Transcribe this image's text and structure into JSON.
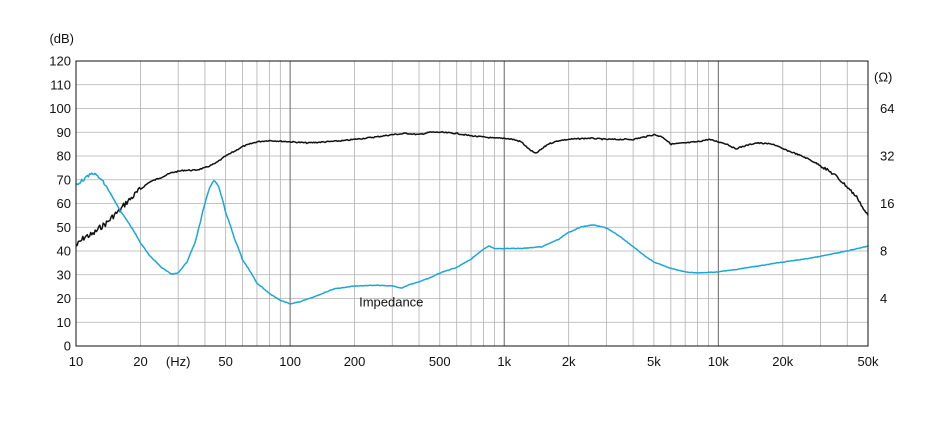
{
  "chart_data": {
    "type": "line",
    "x_scale": "log",
    "xlim": [
      10,
      50000
    ],
    "y_left": {
      "unit": "(dB)",
      "lim": [
        0,
        120
      ],
      "ticks": [
        "0",
        "10",
        "20",
        "30",
        "40",
        "50",
        "60",
        "70",
        "80",
        "90",
        "100",
        "110",
        "120"
      ]
    },
    "y_right": {
      "unit": "(Ω)",
      "scale": "log2",
      "lim": [
        2,
        128
      ],
      "ticks": [
        {
          "value": 4,
          "label": "4"
        },
        {
          "value": 8,
          "label": "8"
        },
        {
          "value": 16,
          "label": "16"
        },
        {
          "value": 32,
          "label": "32"
        },
        {
          "value": 64,
          "label": "64"
        }
      ]
    },
    "x_ticks": [
      {
        "value": 10,
        "label": "10"
      },
      {
        "value": 20,
        "label": "20"
      },
      {
        "value": 50,
        "label": "50"
      },
      {
        "value": 100,
        "label": "100"
      },
      {
        "value": 200,
        "label": "200"
      },
      {
        "value": 500,
        "label": "500"
      },
      {
        "value": 1000,
        "label": "1k"
      },
      {
        "value": 2000,
        "label": "2k"
      },
      {
        "value": 5000,
        "label": "5k"
      },
      {
        "value": 10000,
        "label": "10k"
      },
      {
        "value": 20000,
        "label": "20k"
      },
      {
        "value": 50000,
        "label": "50k"
      }
    ],
    "x_unit_label": {
      "value": 30,
      "label": "(Hz)"
    },
    "grid": true,
    "annotations": [
      {
        "text": "Impedance",
        "x": 210,
        "y": 20
      }
    ],
    "series": [
      {
        "axis": "left",
        "color": "#111111",
        "points": [
          [
            10,
            42
          ],
          [
            11,
            46
          ],
          [
            12,
            47
          ],
          [
            13,
            50
          ],
          [
            14,
            52
          ],
          [
            15,
            55
          ],
          [
            16,
            57
          ],
          [
            17,
            60
          ],
          [
            18,
            62
          ],
          [
            20,
            66
          ],
          [
            22,
            69
          ],
          [
            25,
            71
          ],
          [
            28,
            73
          ],
          [
            32,
            74
          ],
          [
            36,
            74
          ],
          [
            40,
            75
          ],
          [
            45,
            77
          ],
          [
            50,
            80
          ],
          [
            55,
            82
          ],
          [
            60,
            84
          ],
          [
            70,
            86
          ],
          [
            80,
            86.5
          ],
          [
            100,
            86
          ],
          [
            120,
            85.5
          ],
          [
            150,
            86
          ],
          [
            180,
            86.5
          ],
          [
            200,
            87
          ],
          [
            250,
            88
          ],
          [
            300,
            89
          ],
          [
            350,
            89.5
          ],
          [
            400,
            89
          ],
          [
            450,
            90
          ],
          [
            500,
            90
          ],
          [
            600,
            89.5
          ],
          [
            700,
            88.5
          ],
          [
            800,
            88
          ],
          [
            900,
            87.5
          ],
          [
            1000,
            87.5
          ],
          [
            1100,
            87
          ],
          [
            1200,
            86
          ],
          [
            1300,
            83
          ],
          [
            1400,
            81
          ],
          [
            1500,
            83
          ],
          [
            1600,
            85
          ],
          [
            1800,
            86.5
          ],
          [
            2000,
            87
          ],
          [
            2500,
            87.5
          ],
          [
            3000,
            87
          ],
          [
            3500,
            87
          ],
          [
            4000,
            87
          ],
          [
            4500,
            88
          ],
          [
            5000,
            89
          ],
          [
            5500,
            88
          ],
          [
            6000,
            85
          ],
          [
            7000,
            85.5
          ],
          [
            8000,
            86
          ],
          [
            9000,
            87
          ],
          [
            10000,
            86
          ],
          [
            11000,
            85
          ],
          [
            12000,
            83
          ],
          [
            13000,
            84
          ],
          [
            15000,
            85.5
          ],
          [
            18000,
            85
          ],
          [
            20000,
            83
          ],
          [
            23000,
            81
          ],
          [
            26000,
            79
          ],
          [
            30000,
            76
          ],
          [
            35000,
            72
          ],
          [
            40000,
            67
          ],
          [
            45000,
            62
          ],
          [
            48000,
            57
          ],
          [
            50000,
            55
          ]
        ]
      },
      {
        "axis": "right",
        "color": "#1aa7d7",
        "points": [
          [
            10,
            21
          ],
          [
            11,
            23
          ],
          [
            12,
            25
          ],
          [
            13,
            23
          ],
          [
            14,
            20
          ],
          [
            15,
            17
          ],
          [
            16,
            14.5
          ],
          [
            18,
            11.5
          ],
          [
            20,
            9
          ],
          [
            22,
            7.5
          ],
          [
            25,
            6.3
          ],
          [
            28,
            5.7
          ],
          [
            30,
            5.8
          ],
          [
            33,
            6.8
          ],
          [
            36,
            9
          ],
          [
            38,
            12
          ],
          [
            40,
            16
          ],
          [
            42,
            20
          ],
          [
            44,
            22.5
          ],
          [
            46,
            21
          ],
          [
            48,
            17.5
          ],
          [
            50,
            14
          ],
          [
            55,
            9.5
          ],
          [
            60,
            7
          ],
          [
            70,
            5
          ],
          [
            80,
            4.3
          ],
          [
            90,
            3.9
          ],
          [
            100,
            3.7
          ],
          [
            110,
            3.8
          ],
          [
            130,
            4.1
          ],
          [
            160,
            4.6
          ],
          [
            200,
            4.8
          ],
          [
            250,
            4.85
          ],
          [
            300,
            4.8
          ],
          [
            330,
            4.65
          ],
          [
            360,
            4.9
          ],
          [
            400,
            5.1
          ],
          [
            450,
            5.4
          ],
          [
            500,
            5.8
          ],
          [
            600,
            6.3
          ],
          [
            700,
            7.1
          ],
          [
            800,
            8.2
          ],
          [
            850,
            8.6
          ],
          [
            900,
            8.3
          ],
          [
            1000,
            8.3
          ],
          [
            1200,
            8.3
          ],
          [
            1500,
            8.5
          ],
          [
            1800,
            9.5
          ],
          [
            2000,
            10.5
          ],
          [
            2300,
            11.4
          ],
          [
            2600,
            11.7
          ],
          [
            3000,
            11.2
          ],
          [
            3500,
            9.8
          ],
          [
            4000,
            8.5
          ],
          [
            4500,
            7.5
          ],
          [
            5000,
            6.8
          ],
          [
            6000,
            6.2
          ],
          [
            7000,
            5.9
          ],
          [
            8000,
            5.8
          ],
          [
            10000,
            5.9
          ],
          [
            12000,
            6.1
          ],
          [
            15000,
            6.4
          ],
          [
            20000,
            6.8
          ],
          [
            25000,
            7.1
          ],
          [
            30000,
            7.4
          ],
          [
            40000,
            8.0
          ],
          [
            50000,
            8.6
          ]
        ]
      }
    ]
  }
}
